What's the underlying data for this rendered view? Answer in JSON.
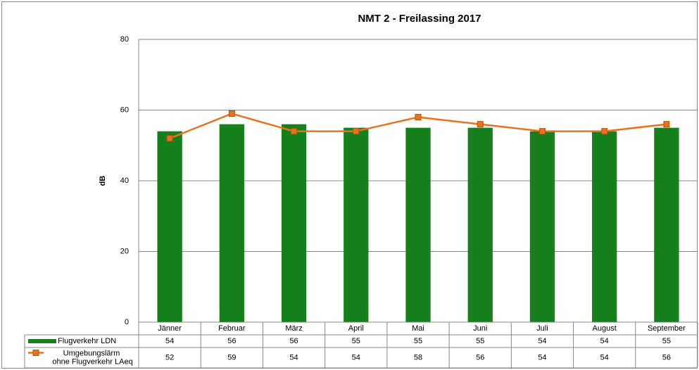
{
  "chart_data": {
    "type": "bar_line_table",
    "title": "NMT 2 - Freilassing 2017",
    "y_label": "dB",
    "categories": [
      "Jänner",
      "Februar",
      "März",
      "April",
      "Mai",
      "Juni",
      "Juli",
      "August",
      "September"
    ],
    "series": [
      {
        "name": "Flugverkehr LDN",
        "type": "bar",
        "color": "#16801c",
        "values": [
          54,
          56,
          56,
          55,
          55,
          55,
          54,
          54,
          55
        ]
      },
      {
        "name": "Umgebungslärm ohne Flugverkehr LAeq",
        "type": "line",
        "color": "#e8731c",
        "values": [
          52,
          59,
          54,
          54,
          58,
          56,
          54,
          54,
          56
        ]
      }
    ],
    "ylim": [
      0,
      80
    ],
    "yticks": [
      0,
      20,
      40,
      60,
      80
    ],
    "grid": true
  }
}
